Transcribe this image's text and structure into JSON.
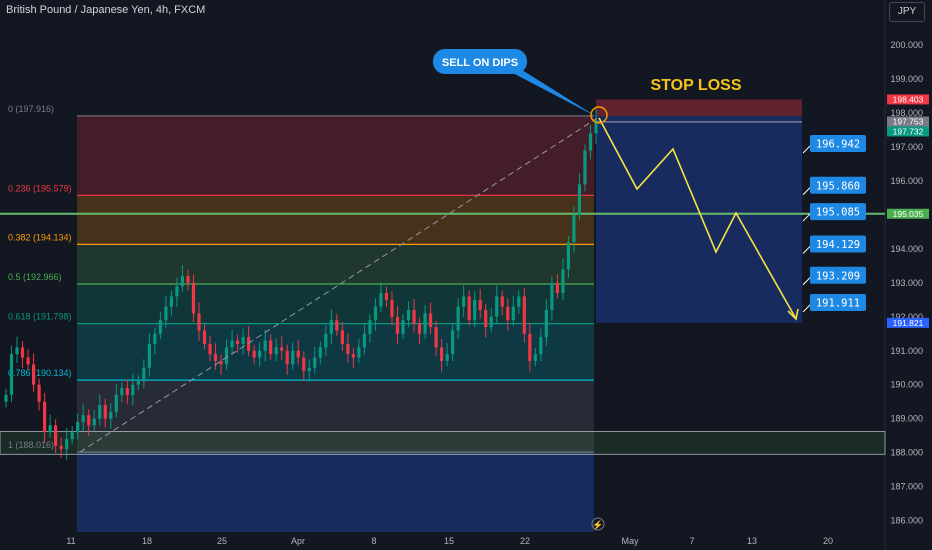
{
  "header": {
    "title": "British Pound / Japanese Yen, 4h, FXCM",
    "currency_label": "JPY"
  },
  "chart_data": {
    "type": "candlestick",
    "title": "British Pound / Japanese Yen, 4h, FXCM",
    "y_ticks": [
      "186.000",
      "187.000",
      "188.000",
      "189.000",
      "190.000",
      "191.000",
      "192.000",
      "193.000",
      "194.000",
      "195.000",
      "196.000",
      "197.000",
      "198.000",
      "199.000",
      "200.000"
    ],
    "x_ticks": [
      "11",
      "18",
      "25",
      "Apr",
      "8",
      "15",
      "22",
      "May",
      "7",
      "13",
      "20"
    ],
    "fib_levels": [
      {
        "label": "0 (197.916)",
        "price": 197.916,
        "line": "#787b86",
        "fill": "rgba(242,54,69,0.22)"
      },
      {
        "label": "0.236 (195.579)",
        "price": 195.579,
        "line": "#f23645",
        "fill": "rgba(255,152,0,0.22)"
      },
      {
        "label": "0.382 (194.134)",
        "price": 194.134,
        "line": "#ff9800",
        "fill": "rgba(76,175,80,0.22)"
      },
      {
        "label": "0.5 (192.966)",
        "price": 192.966,
        "line": "#4caf50",
        "fill": "rgba(8,153,129,0.24)"
      },
      {
        "label": "0.618 (191.798)",
        "price": 191.798,
        "line": "#089981",
        "fill": "rgba(0,188,212,0.2)"
      },
      {
        "label": "0.786 (190.134)",
        "price": 190.134,
        "line": "#00bcd4",
        "fill": "rgba(120,123,134,0.2)"
      },
      {
        "label": "1 (188.016)",
        "price": 188.016,
        "line": "#787b86",
        "fill": null
      }
    ],
    "price_series": [
      189.7,
      190.9,
      191.1,
      190.8,
      190.6,
      190.0,
      189.5,
      188.6,
      188.8,
      188.2,
      188.1,
      188.4,
      188.6,
      188.9,
      189.1,
      188.8,
      189.0,
      189.4,
      189.0,
      189.2,
      189.7,
      189.9,
      189.7,
      190.0,
      190.1,
      190.5,
      191.2,
      191.5,
      191.9,
      192.3,
      192.6,
      192.9,
      193.2,
      193.0,
      192.1,
      191.6,
      191.2,
      190.9,
      190.7,
      190.6,
      191.1,
      191.3,
      191.2,
      191.4,
      191.0,
      190.8,
      191.0,
      191.3,
      190.9,
      191.1,
      191.0,
      190.6,
      191.0,
      190.8,
      190.4,
      190.5,
      190.8,
      191.1,
      191.5,
      191.9,
      191.6,
      191.2,
      190.9,
      190.8,
      191.1,
      191.5,
      191.9,
      192.3,
      192.7,
      192.5,
      192.0,
      191.5,
      191.9,
      192.2,
      191.8,
      191.5,
      192.1,
      191.7,
      191.1,
      190.7,
      190.9,
      191.6,
      192.3,
      192.6,
      191.9,
      192.5,
      192.2,
      191.7,
      192.0,
      192.6,
      192.3,
      191.9,
      192.3,
      192.6,
      191.5,
      190.7,
      190.9,
      191.4,
      192.2,
      193.0,
      192.7,
      193.4,
      194.2,
      195.0,
      195.9,
      196.9,
      197.4,
      197.8
    ],
    "target_path": [
      {
        "price": 197.81,
        "label": ""
      },
      {
        "price": 196.942,
        "label": "196.942"
      },
      {
        "price": 195.86,
        "label": "195.860"
      },
      {
        "price": 195.085,
        "label": "195.085"
      },
      {
        "price": 194.129,
        "label": "194.129"
      },
      {
        "price": 193.209,
        "label": "193.209"
      },
      {
        "price": 191.911,
        "label": "191.911"
      }
    ],
    "horizontal_line": {
      "price": 195.035
    },
    "stop_loss_zone": {
      "from": 197.916,
      "to": 198.403
    },
    "target_zone": {
      "from": 191.821,
      "to": 197.916
    },
    "support_zone": {
      "from": 187.95,
      "to": 188.62
    },
    "price_tags": [
      {
        "label": "198.403",
        "price": 198.403,
        "color": "#f23645"
      },
      {
        "label": "197.753",
        "price": 197.753,
        "color": "#787b86"
      },
      {
        "label": "197.732",
        "price": 197.732,
        "color": "#089981"
      },
      {
        "label": "195.035",
        "price": 195.035,
        "color": "#4caf50"
      },
      {
        "label": "191.821",
        "price": 191.821,
        "color": "#2962ff"
      }
    ],
    "annotations": {
      "callout": "SELL ON DIPS",
      "stop_loss": "STOP LOSS"
    },
    "colors": {
      "up": "#089981",
      "down": "#f23645",
      "background": "#131722",
      "target_line": "#f5e642",
      "callout": "#1e88e5"
    }
  }
}
